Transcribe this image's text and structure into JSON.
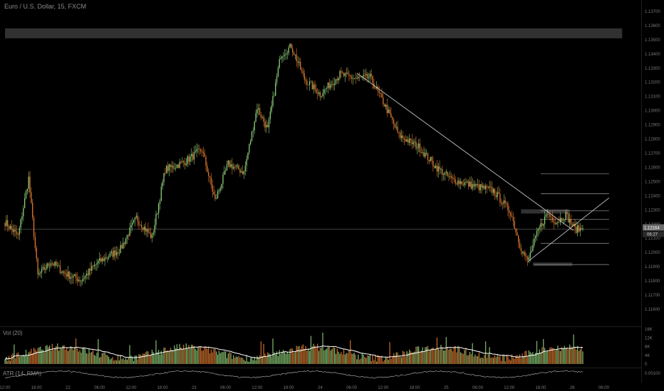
{
  "header": {
    "title": "Euro / U.S. Dollar, 15, FXCM"
  },
  "colors": {
    "background": "#000000",
    "up": "#8fcf7a",
    "down": "#e07a2f",
    "axis_text": "#777777",
    "trendline": "#d8d8d8",
    "level_line": "#9a9a9a",
    "price_badge_bg": "#6b6b6b",
    "zone_fill": "#3a3a3a"
  },
  "chart_data": [
    {
      "type": "candlestick",
      "symbol": "Euro / U.S. Dollar",
      "interval": "15",
      "source": "FXCM",
      "y_ticks": [
        "1.13700",
        "1.13600",
        "1.13500",
        "1.13400",
        "1.13300",
        "1.13200",
        "1.13100",
        "1.13000",
        "1.12900",
        "1.12800",
        "1.12700",
        "1.12600",
        "1.12500",
        "1.12400",
        "1.12300",
        "1.12200",
        "1.12100",
        "1.12000",
        "1.11900",
        "1.11800",
        "1.11700",
        "1.11600"
      ],
      "ylim": [
        1.1157,
        1.1375
      ],
      "x_ticks": [
        "12:00",
        "18:00",
        "22",
        "06:00",
        "12:00",
        "18:00",
        "23",
        "06:00",
        "12:00",
        "18:00",
        "24",
        "06:00",
        "12:00",
        "18:00",
        "25",
        "06:00",
        "12:00",
        "18:00",
        "26",
        "06:00"
      ],
      "x_range_bars": [
        0,
        440
      ],
      "x_tick_bars": [
        0,
        24,
        48,
        72,
        96,
        120,
        144,
        168,
        192,
        216,
        240,
        264,
        288,
        312,
        336,
        360,
        384,
        408,
        432,
        456
      ],
      "price_badges": [
        "1.12164",
        "06:27"
      ],
      "close_price": 1.12164,
      "anchors": [
        [
          0,
          1.1221
        ],
        [
          10,
          1.1211
        ],
        [
          18,
          1.1252
        ],
        [
          25,
          1.1183
        ],
        [
          35,
          1.1193
        ],
        [
          45,
          1.1185
        ],
        [
          58,
          1.118
        ],
        [
          70,
          1.1192
        ],
        [
          88,
          1.1202
        ],
        [
          100,
          1.1224
        ],
        [
          112,
          1.121
        ],
        [
          122,
          1.1258
        ],
        [
          136,
          1.1263
        ],
        [
          150,
          1.1272
        ],
        [
          160,
          1.1236
        ],
        [
          170,
          1.1262
        ],
        [
          182,
          1.1256
        ],
        [
          192,
          1.1302
        ],
        [
          200,
          1.1286
        ],
        [
          210,
          1.1339
        ],
        [
          218,
          1.1345
        ],
        [
          228,
          1.1322
        ],
        [
          240,
          1.1311
        ],
        [
          255,
          1.1325
        ],
        [
          268,
          1.1322
        ],
        [
          278,
          1.1323
        ],
        [
          290,
          1.1302
        ],
        [
          300,
          1.1282
        ],
        [
          315,
          1.1274
        ],
        [
          328,
          1.126
        ],
        [
          340,
          1.1251
        ],
        [
          355,
          1.1247
        ],
        [
          372,
          1.1243
        ],
        [
          385,
          1.1228
        ],
        [
          392,
          1.1205
        ],
        [
          398,
          1.1193
        ],
        [
          406,
          1.1215
        ],
        [
          413,
          1.1227
        ],
        [
          420,
          1.1221
        ],
        [
          427,
          1.1226
        ],
        [
          434,
          1.1216
        ]
      ],
      "trendlines": [
        {
          "from": [
            268,
            1.1326
          ],
          "to": [
            433,
            1.1215
          ]
        },
        {
          "from": [
            398,
            1.1193
          ],
          "to": [
            460,
            1.1238
          ]
        }
      ],
      "horizontal_levels": [
        {
          "price": 1.1216,
          "from_bar": 0,
          "to_bar": 460,
          "style": "current"
        },
        {
          "price": 1.1255,
          "from_bar": 408,
          "to_bar": 460
        },
        {
          "price": 1.1241,
          "from_bar": 408,
          "to_bar": 460
        },
        {
          "price": 1.1229,
          "from_bar": 408,
          "to_bar": 460
        },
        {
          "price": 1.1223,
          "from_bar": 408,
          "to_bar": 460
        },
        {
          "price": 1.1206,
          "from_bar": 408,
          "to_bar": 460
        },
        {
          "price": 1.1191,
          "from_bar": 403,
          "to_bar": 460
        }
      ],
      "zones": [
        {
          "top": 1.13575,
          "bottom": 1.13505,
          "from_bar": 0,
          "to_bar": 470
        },
        {
          "top": 1.123,
          "bottom": 1.1227,
          "from_bar": 393,
          "to_bar": 430
        },
        {
          "top": 1.11925,
          "bottom": 1.119,
          "from_bar": 402,
          "to_bar": 432
        }
      ]
    },
    {
      "type": "bar",
      "name": "Vol (20)",
      "title": "Vol (20)",
      "y_ticks": [
        "16K",
        "12K",
        "8K",
        "4K",
        "0"
      ],
      "ylim": [
        0,
        16000
      ],
      "overlay": "moving average (20)"
    },
    {
      "type": "line",
      "name": "ATR (14, RMA)",
      "title": "ATR (14, RMA)",
      "y_ticks": [
        "0.00100"
      ]
    }
  ]
}
